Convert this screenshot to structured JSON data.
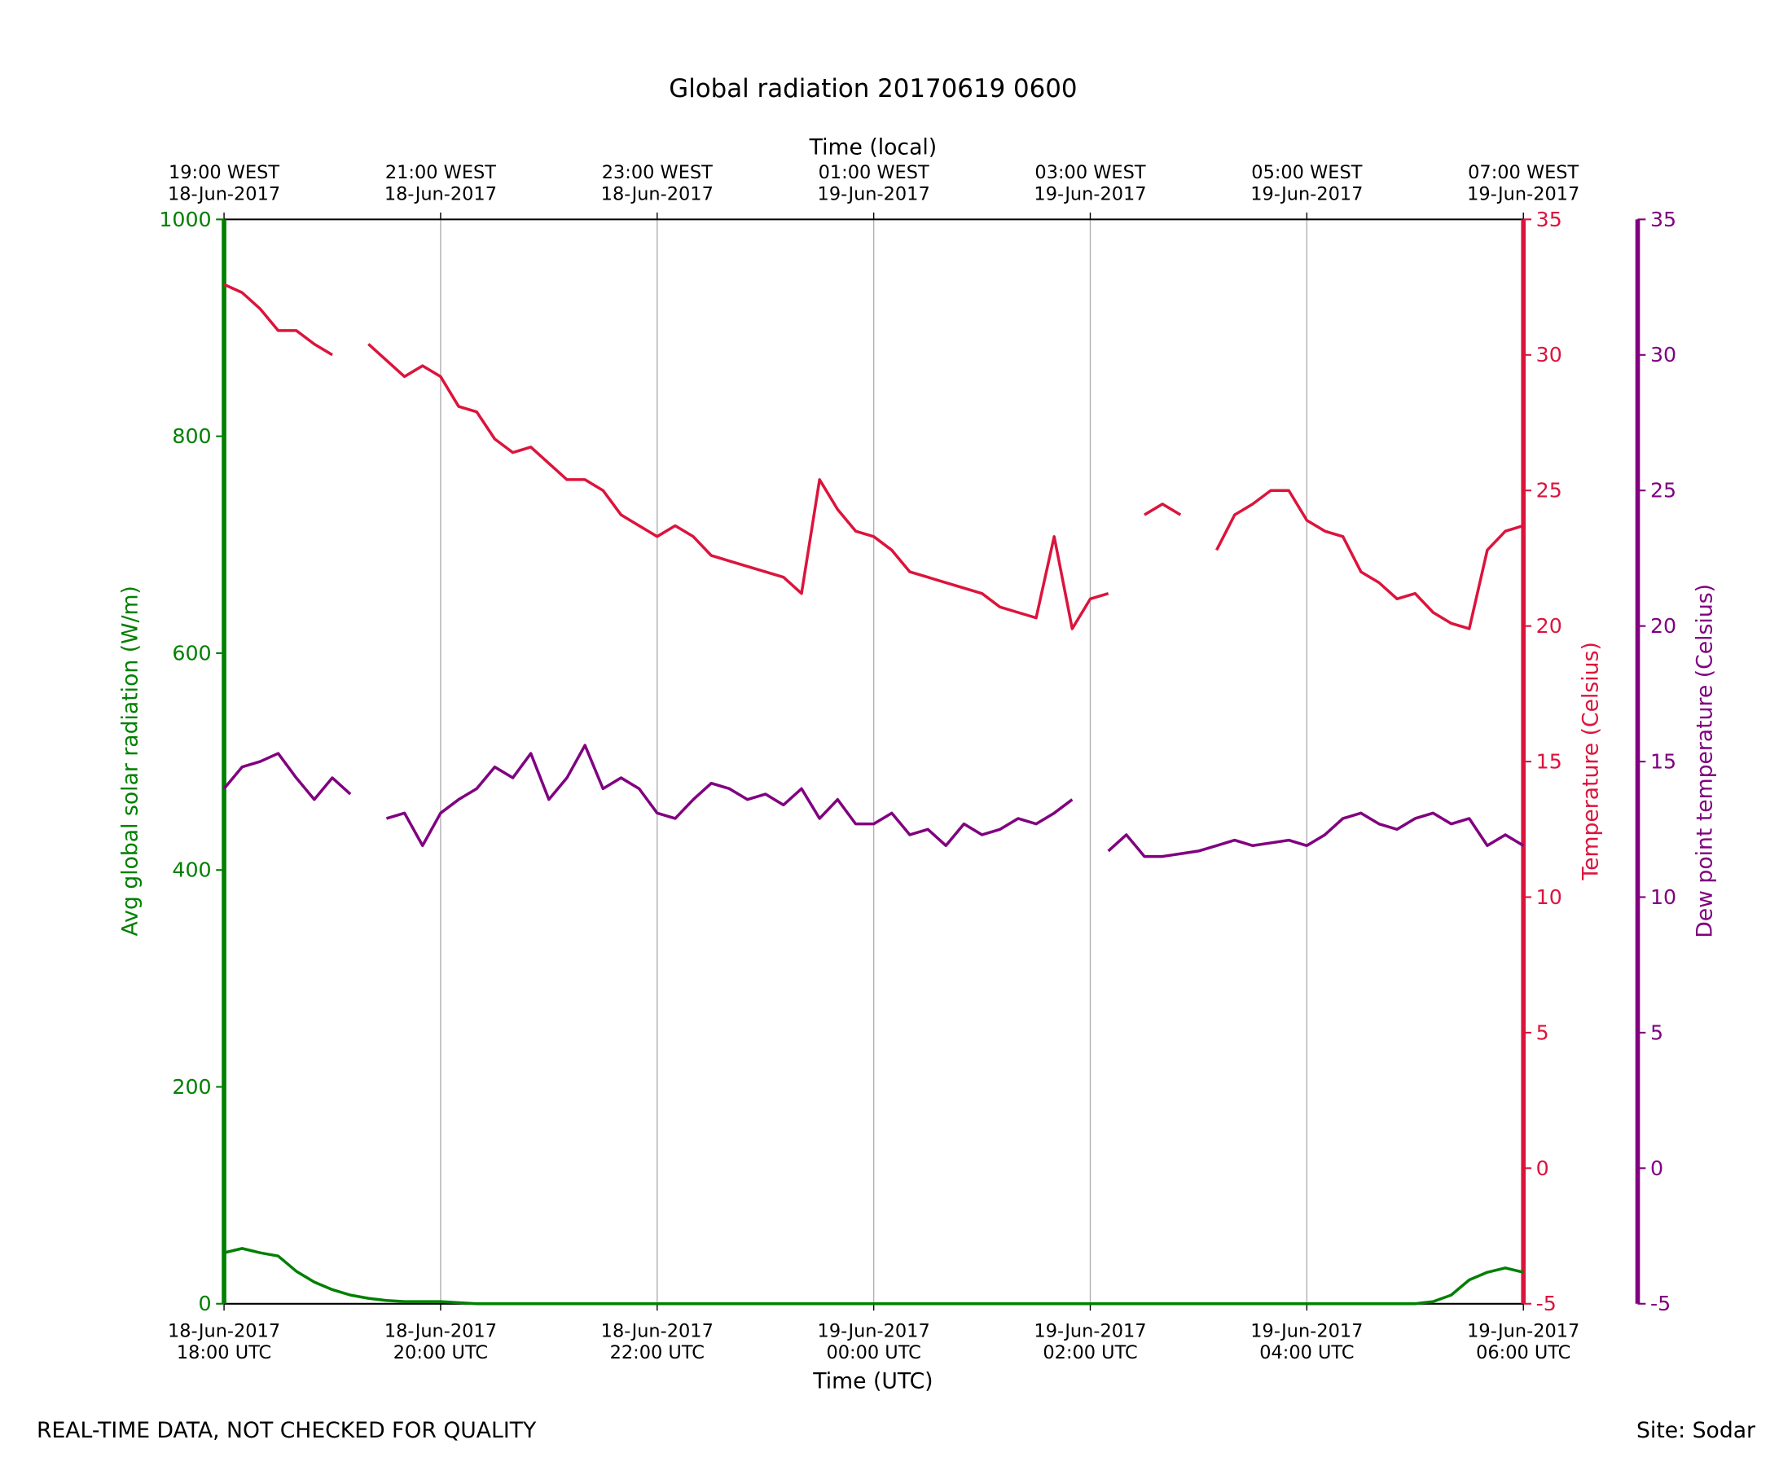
{
  "chart_data": {
    "type": "line",
    "title": "Global radiation 20170619 0600",
    "xlabel": "Time (UTC)",
    "x2label": "Time (local)",
    "ylabel": "Avg global solar radiation (W/m)",
    "y2label": "Temperature (Celsius)",
    "y3label": "Dew point temperature (Celsius)",
    "footnote": "REAL-TIME DATA, NOT CHECKED FOR QUALITY",
    "site": "Site: Sodar",
    "grid": "x",
    "xlim": [
      "2017-06-18 18:00",
      "2017-06-19 06:00"
    ],
    "xticks": [
      {
        "value": "2017-06-18 18:00",
        "label": "18-Jun-2017\n18:00 UTC"
      },
      {
        "value": "2017-06-18 20:00",
        "label": "18-Jun-2017\n20:00 UTC"
      },
      {
        "value": "2017-06-18 22:00",
        "label": "18-Jun-2017\n22:00 UTC"
      },
      {
        "value": "2017-06-19 00:00",
        "label": "19-Jun-2017\n00:00 UTC"
      },
      {
        "value": "2017-06-19 02:00",
        "label": "19-Jun-2017\n02:00 UTC"
      },
      {
        "value": "2017-06-19 04:00",
        "label": "19-Jun-2017\n04:00 UTC"
      },
      {
        "value": "2017-06-19 06:00",
        "label": "19-Jun-2017\n06:00 UTC"
      }
    ],
    "x2ticks": [
      {
        "value": "2017-06-18 18:00",
        "label": "19:00 WEST\n18-Jun-2017"
      },
      {
        "value": "2017-06-18 20:00",
        "label": "21:00 WEST\n18-Jun-2017"
      },
      {
        "value": "2017-06-18 22:00",
        "label": "23:00 WEST\n18-Jun-2017"
      },
      {
        "value": "2017-06-19 00:00",
        "label": "01:00 WEST\n19-Jun-2017"
      },
      {
        "value": "2017-06-19 02:00",
        "label": "03:00 WEST\n19-Jun-2017"
      },
      {
        "value": "2017-06-19 04:00",
        "label": "05:00 WEST\n19-Jun-2017"
      },
      {
        "value": "2017-06-19 06:00",
        "label": "07:00 WEST\n19-Jun-2017"
      }
    ],
    "ylim": [
      0,
      1000
    ],
    "yticks": [
      0,
      200,
      400,
      600,
      800,
      1000
    ],
    "y2lim": [
      -5,
      35
    ],
    "y2ticks": [
      -5,
      0,
      5,
      10,
      15,
      20,
      25,
      30,
      35
    ],
    "y3lim": [
      -5,
      35
    ],
    "y3ticks": [
      -5,
      0,
      5,
      10,
      15,
      20,
      25,
      30,
      35
    ],
    "x": [
      "2017-06-18 18:00",
      "2017-06-18 18:10",
      "2017-06-18 18:20",
      "2017-06-18 18:30",
      "2017-06-18 18:40",
      "2017-06-18 18:50",
      "2017-06-18 19:00",
      "2017-06-18 19:10",
      "2017-06-18 19:20",
      "2017-06-18 19:30",
      "2017-06-18 19:40",
      "2017-06-18 19:50",
      "2017-06-18 20:00",
      "2017-06-18 20:10",
      "2017-06-18 20:20",
      "2017-06-18 20:30",
      "2017-06-18 20:40",
      "2017-06-18 20:50",
      "2017-06-18 21:00",
      "2017-06-18 21:10",
      "2017-06-18 21:20",
      "2017-06-18 21:30",
      "2017-06-18 21:40",
      "2017-06-18 21:50",
      "2017-06-18 22:00",
      "2017-06-18 22:10",
      "2017-06-18 22:20",
      "2017-06-18 22:30",
      "2017-06-18 22:40",
      "2017-06-18 22:50",
      "2017-06-18 23:00",
      "2017-06-18 23:10",
      "2017-06-18 23:20",
      "2017-06-18 23:30",
      "2017-06-18 23:40",
      "2017-06-18 23:50",
      "2017-06-19 00:00",
      "2017-06-19 00:10",
      "2017-06-19 00:20",
      "2017-06-19 00:30",
      "2017-06-19 00:40",
      "2017-06-19 00:50",
      "2017-06-19 01:00",
      "2017-06-19 01:10",
      "2017-06-19 01:20",
      "2017-06-19 01:30",
      "2017-06-19 01:40",
      "2017-06-19 01:50",
      "2017-06-19 02:00",
      "2017-06-19 02:10",
      "2017-06-19 02:20",
      "2017-06-19 02:30",
      "2017-06-19 02:40",
      "2017-06-19 02:50",
      "2017-06-19 03:00",
      "2017-06-19 03:10",
      "2017-06-19 03:20",
      "2017-06-19 03:30",
      "2017-06-19 03:40",
      "2017-06-19 03:50",
      "2017-06-19 04:00",
      "2017-06-19 04:10",
      "2017-06-19 04:20",
      "2017-06-19 04:30",
      "2017-06-19 04:40",
      "2017-06-19 04:50",
      "2017-06-19 05:00",
      "2017-06-19 05:10",
      "2017-06-19 05:20",
      "2017-06-19 05:30",
      "2017-06-19 05:40",
      "2017-06-19 05:50",
      "2017-06-19 06:00"
    ],
    "series": [
      {
        "axis": "y",
        "color": "#008000",
        "values": [
          47,
          51,
          47,
          44,
          30,
          20,
          13,
          8,
          5,
          3,
          2,
          2,
          2,
          1,
          0,
          0,
          0,
          0,
          0,
          0,
          0,
          0,
          0,
          0,
          0,
          0,
          0,
          0,
          0,
          0,
          0,
          0,
          0,
          0,
          0,
          0,
          0,
          0,
          0,
          0,
          0,
          0,
          0,
          0,
          0,
          0,
          0,
          0,
          0,
          0,
          0,
          0,
          0,
          0,
          0,
          0,
          0,
          0,
          0,
          0,
          0,
          0,
          0,
          0,
          0,
          0,
          0,
          2,
          8,
          22,
          29,
          33,
          29
        ]
      },
      {
        "axis": "y2",
        "color": "#dc143c",
        "values": [
          32.6,
          32.3,
          31.7,
          30.9,
          30.9,
          30.4,
          30.0,
          null,
          30.4,
          29.8,
          29.2,
          29.6,
          29.2,
          28.1,
          27.9,
          26.9,
          26.4,
          26.6,
          26.0,
          25.4,
          25.4,
          25.0,
          24.1,
          23.7,
          23.3,
          23.7,
          23.3,
          22.6,
          22.4,
          22.2,
          22.0,
          21.8,
          21.2,
          25.4,
          24.3,
          23.5,
          23.3,
          22.8,
          22.0,
          21.8,
          21.6,
          21.4,
          21.2,
          20.7,
          20.5,
          20.3,
          23.3,
          19.9,
          21.0,
          21.2,
          null,
          24.1,
          24.5,
          24.1,
          null,
          22.8,
          24.1,
          24.5,
          25.0,
          25.0,
          23.9,
          23.5,
          23.3,
          22.0,
          21.6,
          21.0,
          21.2,
          20.5,
          20.1,
          19.9,
          22.8,
          23.5,
          23.7
        ]
      },
      {
        "axis": "y3",
        "color": "#800080",
        "values": [
          14.0,
          14.8,
          15.0,
          15.3,
          14.4,
          13.6,
          14.4,
          13.8,
          null,
          12.9,
          13.1,
          11.9,
          13.1,
          13.6,
          14.0,
          14.8,
          14.4,
          15.3,
          13.6,
          14.4,
          15.6,
          14.0,
          14.4,
          14.0,
          13.1,
          12.9,
          13.6,
          14.2,
          14.0,
          13.6,
          13.8,
          13.4,
          14.0,
          12.9,
          13.6,
          12.7,
          12.7,
          13.1,
          12.3,
          12.5,
          11.9,
          12.7,
          12.3,
          12.5,
          12.9,
          12.7,
          13.1,
          13.6,
          null,
          11.7,
          12.3,
          11.5,
          11.5,
          11.6,
          11.7,
          11.9,
          12.1,
          11.9,
          12.0,
          12.1,
          11.9,
          12.3,
          12.9,
          13.1,
          12.7,
          12.5,
          12.9,
          13.1,
          12.7,
          12.9,
          11.9,
          12.3,
          11.9
        ]
      }
    ]
  }
}
